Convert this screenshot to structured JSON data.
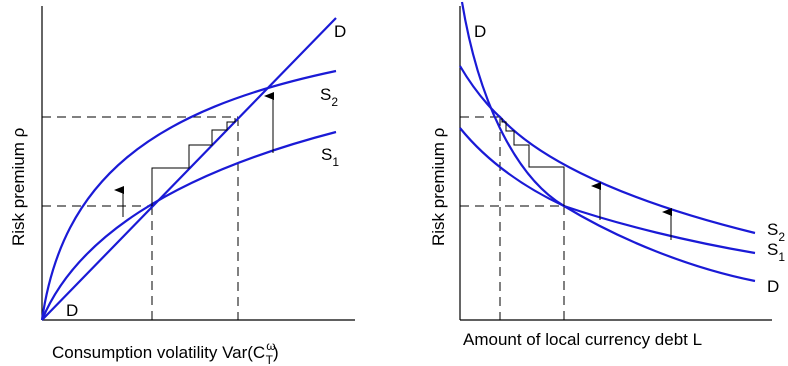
{
  "left_panel": {
    "y_label": "Risk premium ρ",
    "x_label_prefix": "Consumption volatility Var(C",
    "x_label_sup": "ω",
    "x_label_sub": "T",
    "x_label_suffix": ")",
    "curve_D_top": "D",
    "curve_D_bottom": "D",
    "curve_S2": "S",
    "curve_S2_sub": "2",
    "curve_S1": "S",
    "curve_S1_sub": "1"
  },
  "right_panel": {
    "y_label": "Risk premium ρ",
    "x_label": "Amount of local currency debt L",
    "curve_D_top": "D",
    "curve_D_bottom": "D",
    "curve_S2": "S",
    "curve_S2_sub": "2",
    "curve_S1": "S",
    "curve_S1_sub": "1"
  },
  "colors": {
    "curves": "#1a1ad6",
    "axes": "#000000"
  }
}
